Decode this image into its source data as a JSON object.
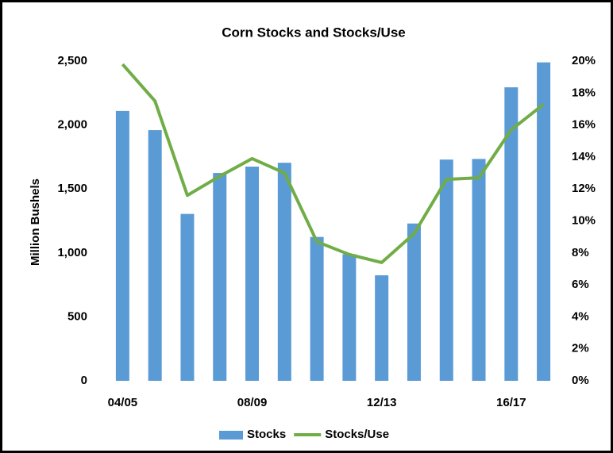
{
  "chart_data": {
    "type": "bar",
    "title": "Corn Stocks and Stocks/Use",
    "y_label": "Million Bushels",
    "categories": [
      "04/05",
      null,
      null,
      null,
      "08/09",
      null,
      null,
      null,
      "12/13",
      null,
      null,
      null,
      "16/17",
      null
    ],
    "series": [
      {
        "name": "Stocks",
        "type": "bar",
        "color": "#5b9bd5",
        "values": [
          2110,
          1960,
          1305,
          1625,
          1675,
          1705,
          1125,
          990,
          825,
          1230,
          1730,
          1735,
          2295,
          2490
        ]
      },
      {
        "name": "Stocks/Use",
        "type": "line",
        "axis": "y2",
        "color": "#70ad47",
        "values": [
          19.8,
          17.5,
          11.6,
          12.8,
          13.9,
          13.0,
          8.7,
          7.9,
          7.4,
          9.2,
          12.6,
          12.7,
          15.7,
          17.3
        ]
      }
    ],
    "ylim": [
      0,
      2500
    ],
    "yticks": [
      0,
      500,
      {
        "value": 1000,
        "label": "1,000"
      },
      {
        "value": 1500,
        "label": "1,500"
      },
      {
        "value": 2000,
        "label": "2,000"
      },
      {
        "value": 2500,
        "label": "2,500"
      }
    ],
    "y2lim": [
      0,
      20
    ],
    "y2ticks": [
      {
        "value": 0,
        "label": "0%"
      },
      {
        "value": 2,
        "label": "2%"
      },
      {
        "value": 4,
        "label": "4%"
      },
      {
        "value": 6,
        "label": "6%"
      },
      {
        "value": 8,
        "label": "8%"
      },
      {
        "value": 10,
        "label": "10%"
      },
      {
        "value": 12,
        "label": "12%"
      },
      {
        "value": 14,
        "label": "14%"
      },
      {
        "value": 16,
        "label": "16%"
      },
      {
        "value": 18,
        "label": "18%"
      },
      {
        "value": 20,
        "label": "20%"
      }
    ],
    "grid": false,
    "legend": "bottom"
  }
}
